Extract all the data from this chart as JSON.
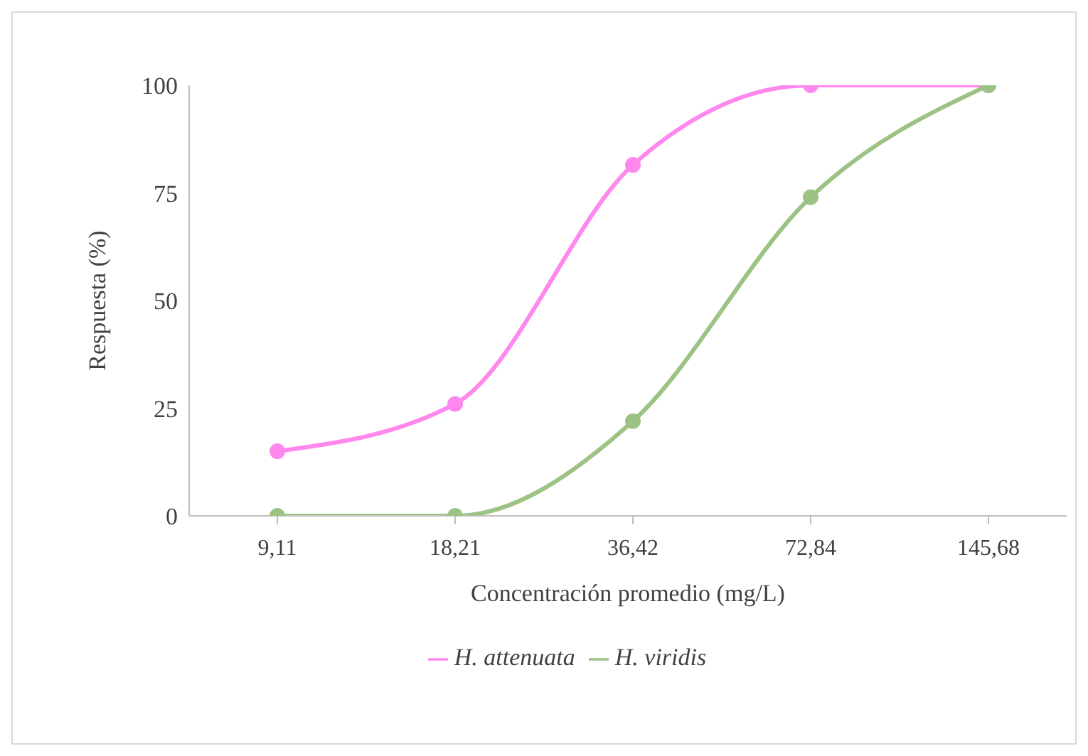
{
  "chart_data": {
    "type": "line",
    "categories": [
      "9,11",
      "18,21",
      "36,42",
      "72,84",
      "145,68"
    ],
    "series": [
      {
        "name": "H. attenuata",
        "color": "#ff88ee",
        "values": [
          15,
          26,
          81.5,
          100,
          100
        ]
      },
      {
        "name": "H. viridis",
        "color": "#9dc384",
        "values": [
          0,
          0,
          22,
          74,
          100
        ]
      }
    ],
    "xlabel": "Concentración promedio (mg/L)",
    "ylabel": "Respuesta (%)",
    "ylim": [
      0,
      100
    ],
    "yticks": [
      0,
      25,
      50,
      75,
      100
    ],
    "grid": false,
    "legend": "bottom",
    "marker": "circle",
    "line_style": "solid"
  }
}
